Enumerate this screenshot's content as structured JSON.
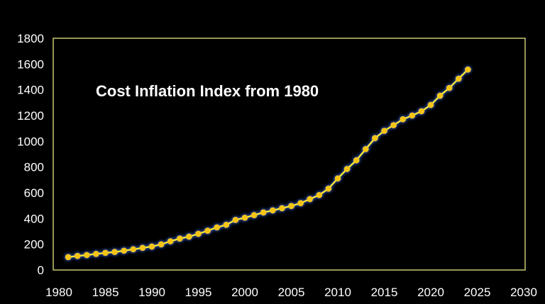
{
  "chart_data": {
    "type": "line",
    "title": "Cost Inflation Index from 1980",
    "xlabel": "",
    "ylabel": "",
    "xlim": [
      1980,
      2030
    ],
    "ylim": [
      0,
      1800
    ],
    "xticks": [
      1980,
      1985,
      1990,
      1995,
      2000,
      2005,
      2010,
      2015,
      2020,
      2025,
      2030
    ],
    "yticks": [
      0,
      200,
      400,
      600,
      800,
      1000,
      1200,
      1400,
      1600,
      1800
    ],
    "grid": false,
    "legend": "none",
    "colors": {
      "line": "#ffee33",
      "marker": "#f5c518",
      "glow": "#3355aa",
      "frame": "#c8c870",
      "background": "#000000",
      "text": "#ffffff"
    },
    "series": [
      {
        "x": [
          1981,
          1982,
          1983,
          1984,
          1985,
          1986,
          1987,
          1988,
          1989,
          1990,
          1991,
          1992,
          1993,
          1994,
          1995,
          1996,
          1997,
          1998,
          1999,
          2000,
          2001,
          2002,
          2003,
          2004,
          2005,
          2006,
          2007,
          2008,
          2009,
          2010,
          2011,
          2012,
          2013,
          2014,
          2015,
          2016,
          2017,
          2018,
          2019,
          2020,
          2021,
          2022,
          2023,
          2024
        ],
        "values": [
          100,
          109,
          116,
          125,
          133,
          140,
          150,
          161,
          172,
          182,
          199,
          223,
          244,
          259,
          281,
          305,
          331,
          351,
          389,
          406,
          426,
          447,
          463,
          480,
          497,
          519,
          551,
          582,
          632,
          711,
          785,
          852,
          939,
          1024,
          1081,
          1125,
          1171,
          1200,
          1233,
          1282,
          1354,
          1414,
          1486,
          1557
        ]
      }
    ]
  }
}
